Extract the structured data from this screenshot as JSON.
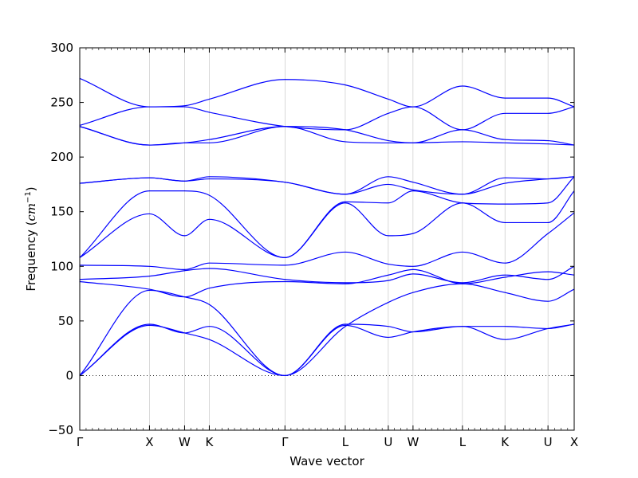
{
  "chart_data": {
    "type": "line",
    "title": "",
    "xlabel": "Wave vector",
    "ylabel_text": "Frequency (",
    "ylabel_unit": "cm",
    "ylabel_exp": "−1",
    "ylabel_close": ")",
    "ylim": [
      -50,
      300
    ],
    "xlim": [
      0,
      1
    ],
    "y_ticks": [
      -50,
      0,
      50,
      100,
      150,
      200,
      250,
      300
    ],
    "y_tick_labels": [
      "−50",
      "0",
      "50",
      "100",
      "150",
      "200",
      "250",
      "300"
    ],
    "x_ticks": [
      {
        "x": 0.0,
        "label": "Γ"
      },
      {
        "x": 0.141,
        "label": "X"
      },
      {
        "x": 0.212,
        "label": "W"
      },
      {
        "x": 0.262,
        "label": "K"
      },
      {
        "x": 0.415,
        "label": "Γ"
      },
      {
        "x": 0.537,
        "label": "L"
      },
      {
        "x": 0.624,
        "label": "U"
      },
      {
        "x": 0.674,
        "label": "W"
      },
      {
        "x": 0.774,
        "label": "L"
      },
      {
        "x": 0.86,
        "label": "K"
      },
      {
        "x": 0.947,
        "label": "U"
      },
      {
        "x": 1.0,
        "label": "X"
      }
    ],
    "zero_line": {
      "y": 0,
      "style": "dotted"
    },
    "grid": false,
    "line_color": "#0000ff",
    "series": [
      {
        "x": [
          0,
          0.141,
          0.212,
          0.262,
          0.415,
          0.537,
          0.624,
          0.674,
          0.774,
          0.86,
          0.947,
          1
        ],
        "y": [
          0,
          46,
          39,
          33,
          0,
          46,
          35,
          40,
          45,
          33,
          43,
          47
        ]
      },
      {
        "x": [
          0,
          0.141,
          0.212,
          0.262,
          0.415,
          0.537,
          0.624,
          0.674,
          0.774,
          0.86,
          0.947,
          1
        ],
        "y": [
          0,
          47,
          39,
          45,
          0,
          47,
          45,
          40,
          45,
          45,
          43,
          47
        ]
      },
      {
        "x": [
          0,
          0.141,
          0.212,
          0.262,
          0.415,
          0.537,
          0.624,
          0.674,
          0.774,
          0.86,
          0.947,
          1
        ],
        "y": [
          0,
          78,
          72,
          65,
          0,
          45,
          67,
          76,
          84,
          76,
          68,
          79
        ]
      },
      {
        "x": [
          0,
          0.141,
          0.212,
          0.262,
          0.415,
          0.537,
          0.624,
          0.674,
          0.774,
          0.86,
          0.947,
          1
        ],
        "y": [
          86,
          79,
          72,
          80,
          86,
          84,
          92,
          97,
          84,
          90,
          95,
          92
        ]
      },
      {
        "x": [
          0,
          0.141,
          0.212,
          0.262,
          0.415,
          0.537,
          0.624,
          0.674,
          0.774,
          0.86,
          0.947,
          1
        ],
        "y": [
          88,
          91,
          96,
          98,
          88,
          85,
          87,
          93,
          85,
          92,
          88,
          100
        ]
      },
      {
        "x": [
          0,
          0.141,
          0.212,
          0.262,
          0.415,
          0.537,
          0.624,
          0.674,
          0.774,
          0.86,
          0.947,
          1
        ],
        "y": [
          101,
          100,
          97,
          103,
          101,
          113,
          102,
          100,
          113,
          103,
          130,
          149
        ]
      },
      {
        "x": [
          0,
          0.141,
          0.212,
          0.262,
          0.415,
          0.537,
          0.624,
          0.674,
          0.774,
          0.86,
          0.947,
          1
        ],
        "y": [
          108,
          148,
          128,
          143,
          108,
          158,
          128,
          130,
          158,
          140,
          140,
          169
        ]
      },
      {
        "x": [
          0,
          0.141,
          0.212,
          0.262,
          0.415,
          0.537,
          0.624,
          0.674,
          0.774,
          0.86,
          0.947,
          1
        ],
        "y": [
          108,
          169,
          169,
          165,
          108,
          159,
          158,
          169,
          158,
          157,
          158,
          182
        ]
      },
      {
        "x": [
          0,
          0.141,
          0.212,
          0.262,
          0.415,
          0.537,
          0.624,
          0.674,
          0.774,
          0.86,
          0.947,
          1
        ],
        "y": [
          176,
          181,
          178,
          180,
          177,
          166,
          182,
          177,
          166,
          181,
          180,
          182
        ]
      },
      {
        "x": [
          0,
          0.141,
          0.212,
          0.262,
          0.415,
          0.537,
          0.624,
          0.674,
          0.774,
          0.86,
          0.947,
          1
        ],
        "y": [
          176,
          181,
          178,
          182,
          177,
          166,
          175,
          170,
          166,
          176,
          180,
          182
        ]
      },
      {
        "x": [
          0,
          0.141,
          0.212,
          0.262,
          0.415,
          0.537,
          0.624,
          0.674,
          0.774,
          0.86,
          0.947,
          1
        ],
        "y": [
          228,
          211,
          213,
          213,
          228,
          214,
          213,
          213,
          214,
          213,
          212,
          211
        ]
      },
      {
        "x": [
          0,
          0.141,
          0.212,
          0.262,
          0.415,
          0.537,
          0.624,
          0.674,
          0.774,
          0.86,
          0.947,
          1
        ],
        "y": [
          228,
          211,
          213,
          216,
          228,
          225,
          215,
          213,
          225,
          216,
          215,
          211
        ]
      },
      {
        "x": [
          0,
          0.141,
          0.212,
          0.262,
          0.415,
          0.537,
          0.624,
          0.674,
          0.774,
          0.86,
          0.947,
          1
        ],
        "y": [
          229,
          246,
          246,
          241,
          228,
          225,
          240,
          246,
          225,
          240,
          240,
          246
        ]
      },
      {
        "x": [
          0,
          0.141,
          0.212,
          0.262,
          0.415,
          0.537,
          0.624,
          0.674,
          0.774,
          0.86,
          0.947,
          1
        ],
        "y": [
          272,
          246,
          247,
          253,
          271,
          266,
          253,
          246,
          265,
          254,
          254,
          246
        ]
      }
    ]
  }
}
